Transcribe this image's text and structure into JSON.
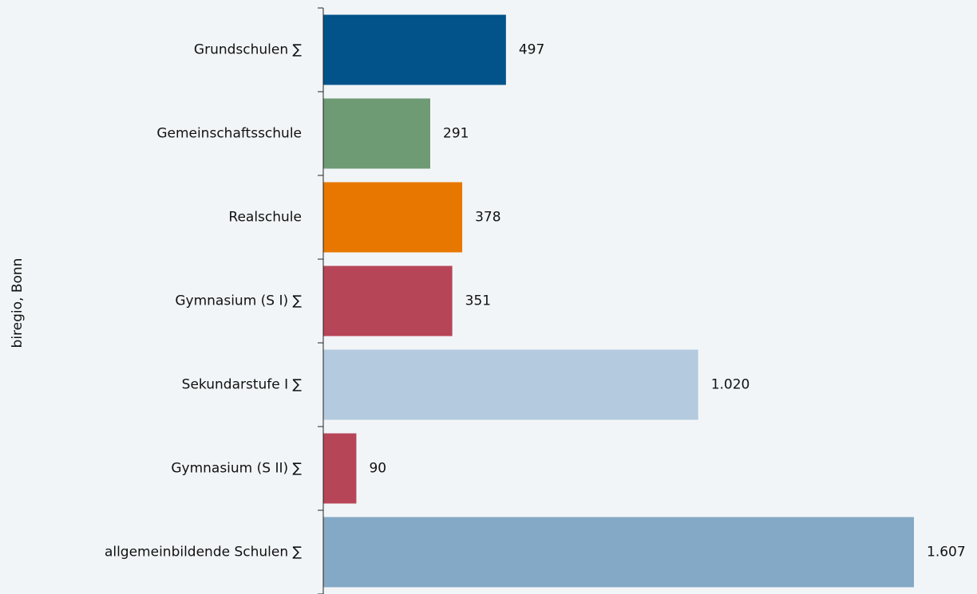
{
  "chart_data": {
    "type": "bar",
    "orientation": "horizontal",
    "y_axis_label": "biregio, Bonn",
    "categories": [
      "Grundschulen ∑",
      "Gemeinschaftsschule",
      "Realschule",
      "Gymnasium (S I) ∑",
      "Sekundarstufe I ∑",
      "Gymnasium (S II) ∑",
      "allgemeinbildende Schulen ∑"
    ],
    "values": [
      497,
      291,
      378,
      351,
      1020,
      90,
      1607
    ],
    "value_labels": [
      "497",
      "291",
      "378",
      "351",
      "1.020",
      "90",
      "1.607"
    ],
    "colors": [
      "#01538a",
      "#6e9a74",
      "#e87700",
      "#b74558",
      "#b4cade",
      "#b74558",
      "#84a9c6"
    ],
    "xlim": [
      0,
      1607
    ]
  }
}
